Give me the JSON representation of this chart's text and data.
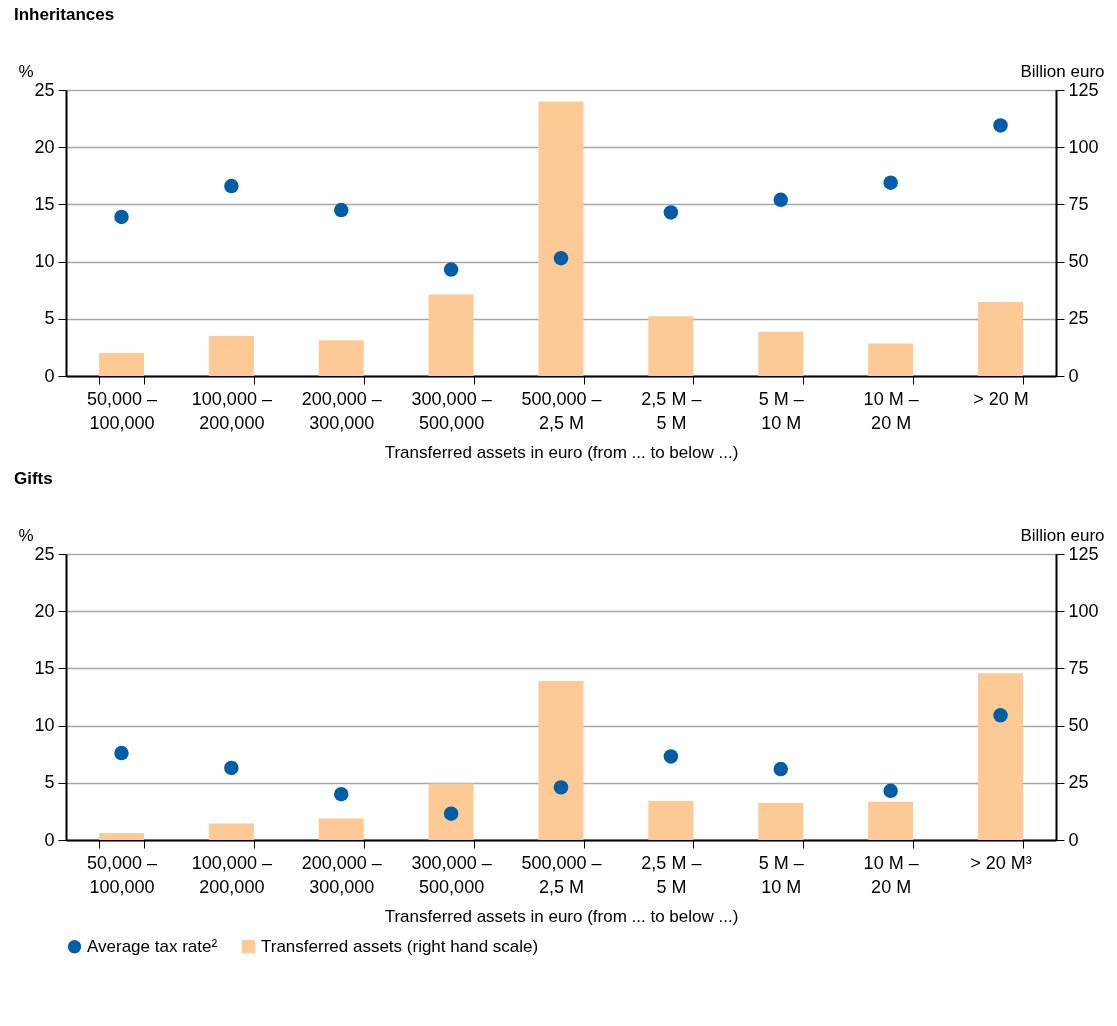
{
  "chart_data": [
    {
      "type": "bar",
      "title": "Inheritances",
      "xlabel": "Transferred assets in euro (from ... to below ...)",
      "ylabel": "%",
      "y2label": "Billion euro",
      "categories": [
        "50,000 – 100,000",
        "100,000 – 200,000",
        "200,000 – 300,000",
        "300,000 – 500,000",
        "500,000 – 2,5 M",
        "2,5 M – 5 M",
        "5 M – 10 M",
        "10 M – 20 M",
        "> 20 M"
      ],
      "series": [
        {
          "type": "bar",
          "axis": "y2",
          "color": "#fdca96",
          "values": [
            10,
            17.5,
            15.6,
            35.6,
            120,
            26.1,
            19.3,
            14.2,
            32.3
          ]
        },
        {
          "type": "scatter",
          "color": "#005ea8",
          "values": [
            13.9,
            16.6,
            14.5,
            9.3,
            10.3,
            14.3,
            15.4,
            16.9,
            21.9
          ]
        }
      ],
      "ylim": [
        0,
        25
      ],
      "yticks": [
        0,
        5,
        10,
        15,
        20,
        25
      ],
      "y2lim": [
        0,
        125
      ],
      "y2ticks": [
        0,
        25,
        50,
        75,
        100,
        125
      ],
      "grid": "y",
      "marker": "circle"
    },
    {
      "type": "bar",
      "title": "Gifts",
      "xlabel": "Transferred assets in euro (from ... to below ...)",
      "ylabel": "%",
      "y2label": "Billion euro",
      "categories": [
        "50,000 – 100,000",
        "100,000 – 200,000",
        "200,000 – 300,000",
        "300,000 – 500,000",
        "500,000 – 2,5 M",
        "2,5 M – 5 M",
        "5 M – 10 M",
        "10 M – 20 M",
        "> 20 M³"
      ],
      "series": [
        {
          "type": "scatter",
          "name": "Average tax rate²",
          "color": "#005ea8",
          "values": [
            7.6,
            6.3,
            4.0,
            2.3,
            4.6,
            7.3,
            6.2,
            4.3,
            10.9
          ]
        },
        {
          "type": "bar",
          "axis": "y2",
          "name": "Transferred assets (right hand scale)",
          "color": "#fdca96",
          "values": [
            3.1,
            7.2,
            9.4,
            24.7,
            69.5,
            17.1,
            16.2,
            16.7,
            72.9
          ]
        }
      ],
      "ylim": [
        0,
        25
      ],
      "yticks": [
        0,
        5,
        10,
        15,
        20,
        25
      ],
      "y2lim": [
        0,
        125
      ],
      "y2ticks": [
        0,
        25,
        50,
        75,
        100,
        125
      ],
      "grid": "y",
      "legend": "bottom left",
      "marker": "circle"
    }
  ]
}
